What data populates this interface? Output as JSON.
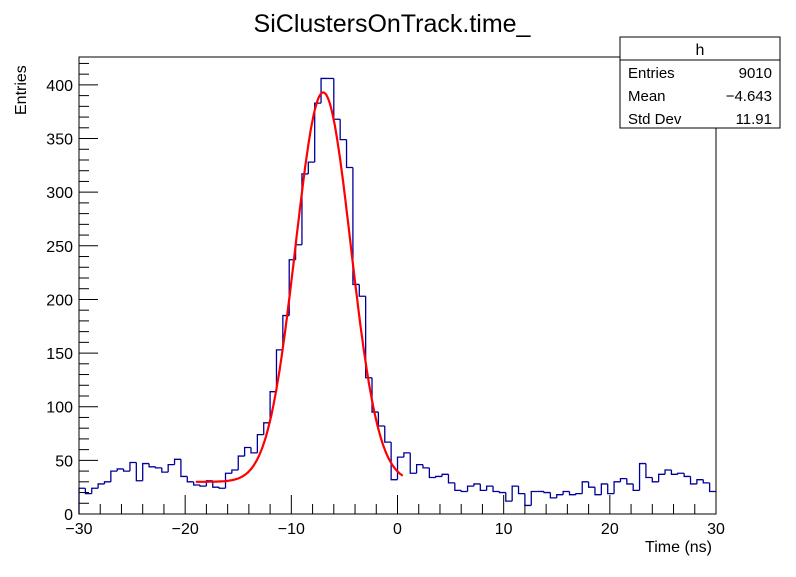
{
  "chart_data": {
    "type": "histogram",
    "title": "SiClustersOnTrack.time_",
    "xlabel": "Time (ns)",
    "ylabel": "Entries",
    "xlim": [
      -30,
      30
    ],
    "ylim": [
      0,
      426
    ],
    "x_ticks": [
      -30,
      -20,
      -10,
      0,
      10,
      20,
      30
    ],
    "y_ticks": [
      0,
      50,
      100,
      150,
      200,
      250,
      300,
      350,
      400
    ],
    "bin_width": 0.6,
    "counts": [
      24,
      19,
      24,
      28,
      30,
      40,
      42,
      40,
      48,
      31,
      47,
      44,
      43,
      39,
      46,
      51,
      35,
      30,
      27,
      26,
      31,
      25,
      24,
      38,
      41,
      54,
      62,
      57,
      74,
      85,
      114,
      153,
      185,
      237,
      251,
      317,
      328,
      383,
      406,
      406,
      368,
      349,
      323,
      214,
      203,
      127,
      95,
      82,
      67,
      32,
      53,
      57,
      38,
      46,
      43,
      34,
      35,
      37,
      29,
      22,
      21,
      26,
      28,
      22,
      26,
      21,
      20,
      12,
      26,
      19,
      8,
      21,
      21,
      20,
      15,
      18,
      21,
      18,
      19,
      30,
      25,
      18,
      28,
      19,
      30,
      33,
      28,
      22,
      47,
      34,
      30,
      37,
      41,
      37,
      38,
      35,
      28,
      32,
      29,
      21
    ],
    "fit": {
      "function": "gaus + const",
      "constant": 30,
      "amplitude": 363,
      "mean": -7.0,
      "sigma": 2.6,
      "range": [
        -19,
        0.5
      ]
    },
    "colors": {
      "histogram": "#000099",
      "fit": "#ff0000"
    },
    "grid": false,
    "stats_box": {
      "name": "h",
      "rows": [
        {
          "label": "Entries",
          "value": "9010"
        },
        {
          "label": "Mean",
          "value": "−4.643"
        },
        {
          "label": "Std Dev",
          "value": "11.91"
        }
      ],
      "placement": "top-right"
    }
  }
}
